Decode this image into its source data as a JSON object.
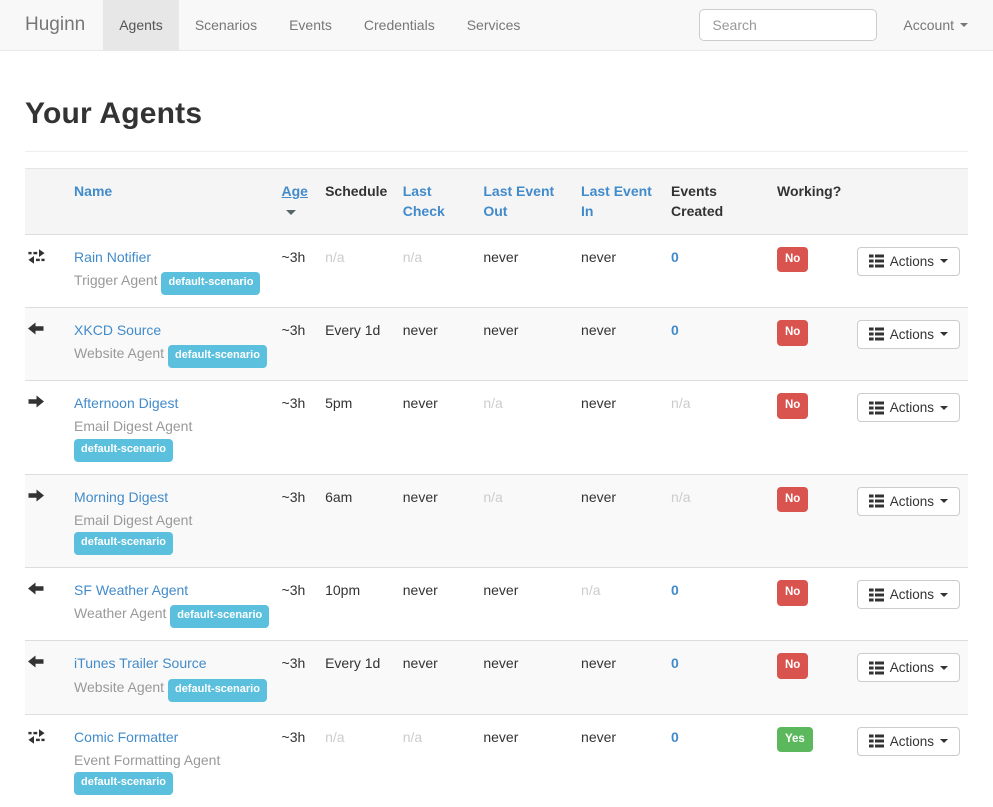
{
  "navbar": {
    "brand": "Huginn",
    "tabs": [
      {
        "label": "Agents",
        "active": true
      },
      {
        "label": "Scenarios",
        "active": false
      },
      {
        "label": "Events",
        "active": false
      },
      {
        "label": "Credentials",
        "active": false
      },
      {
        "label": "Services",
        "active": false
      }
    ],
    "search": {
      "placeholder": "Search"
    },
    "account_label": "Account"
  },
  "page": {
    "title": "Your Agents"
  },
  "table": {
    "columns": [
      {
        "label": "Name",
        "sortable": true,
        "sorted": false
      },
      {
        "label": "Age",
        "sortable": true,
        "sorted": true,
        "sort_direction": "desc"
      },
      {
        "label": "Schedule",
        "sortable": false,
        "sorted": false
      },
      {
        "label": "Last Check",
        "sortable": true,
        "sorted": false
      },
      {
        "label": "Last Event Out",
        "sortable": true,
        "sorted": false
      },
      {
        "label": "Last Event In",
        "sortable": true,
        "sorted": false
      },
      {
        "label": "Events Created",
        "sortable": false,
        "sorted": false
      },
      {
        "label": "Working?",
        "sortable": false,
        "sorted": false
      }
    ],
    "actions_label": "Actions",
    "colors": {
      "link_blue": "#428bca",
      "badge_info": "#5bc0de",
      "badge_danger": "#d9534f",
      "badge_success": "#5cb85c"
    },
    "rows": [
      {
        "icon": "transfer",
        "name": "Rain Notifier",
        "type": "Trigger Agent",
        "scenario": "default-scenario",
        "age": "~3h",
        "schedule": "n/a",
        "last_check": "n/a",
        "last_event_out": "never",
        "last_event_in": "never",
        "events_created": "0",
        "working": "No"
      },
      {
        "icon": "arrow-left",
        "name": "XKCD Source",
        "type": "Website Agent",
        "scenario": "default-scenario",
        "age": "~3h",
        "schedule": "Every 1d",
        "last_check": "never",
        "last_event_out": "never",
        "last_event_in": "never",
        "events_created": "0",
        "working": "No"
      },
      {
        "icon": "arrow-right",
        "name": "Afternoon Digest",
        "type": "Email Digest Agent",
        "scenario": "default-scenario",
        "age": "~3h",
        "schedule": "5pm",
        "last_check": "never",
        "last_event_out": "n/a",
        "last_event_in": "never",
        "events_created": "n/a",
        "working": "No"
      },
      {
        "icon": "arrow-right",
        "name": "Morning Digest",
        "type": "Email Digest Agent",
        "scenario": "default-scenario",
        "age": "~3h",
        "schedule": "6am",
        "last_check": "never",
        "last_event_out": "n/a",
        "last_event_in": "never",
        "events_created": "n/a",
        "working": "No"
      },
      {
        "icon": "arrow-left",
        "name": "SF Weather Agent",
        "type": "Weather Agent",
        "scenario": "default-scenario",
        "age": "~3h",
        "schedule": "10pm",
        "last_check": "never",
        "last_event_out": "never",
        "last_event_in": "n/a",
        "events_created": "0",
        "working": "No"
      },
      {
        "icon": "arrow-left",
        "name": "iTunes Trailer Source",
        "type": "Website Agent",
        "scenario": "default-scenario",
        "age": "~3h",
        "schedule": "Every 1d",
        "last_check": "never",
        "last_event_out": "never",
        "last_event_in": "never",
        "events_created": "0",
        "working": "No"
      },
      {
        "icon": "transfer",
        "name": "Comic Formatter",
        "type": "Event Formatting Agent",
        "scenario": "default-scenario",
        "age": "~3h",
        "schedule": "n/a",
        "last_check": "n/a",
        "last_event_out": "never",
        "last_event_in": "never",
        "events_created": "0",
        "working": "Yes"
      }
    ]
  }
}
